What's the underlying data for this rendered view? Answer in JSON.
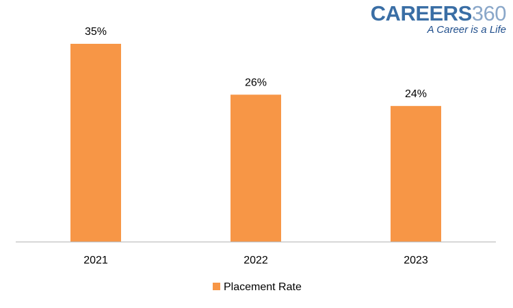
{
  "logo": {
    "brand": "CAREERS",
    "number": "360",
    "tagline": "A Career is a Life"
  },
  "colors": {
    "bar": "#F79646",
    "axis": "#BFBFBF",
    "text": "#000000"
  },
  "chart_data": {
    "type": "bar",
    "categories": [
      "2021",
      "2022",
      "2023"
    ],
    "series": [
      {
        "name": "Placement Rate",
        "values": [
          35,
          26,
          24
        ],
        "labels": [
          "35%",
          "26%",
          "24%"
        ]
      }
    ],
    "title": "",
    "xlabel": "",
    "ylabel": "",
    "ylim": [
      0,
      35
    ],
    "grid": false,
    "legend": "bottom-center"
  }
}
